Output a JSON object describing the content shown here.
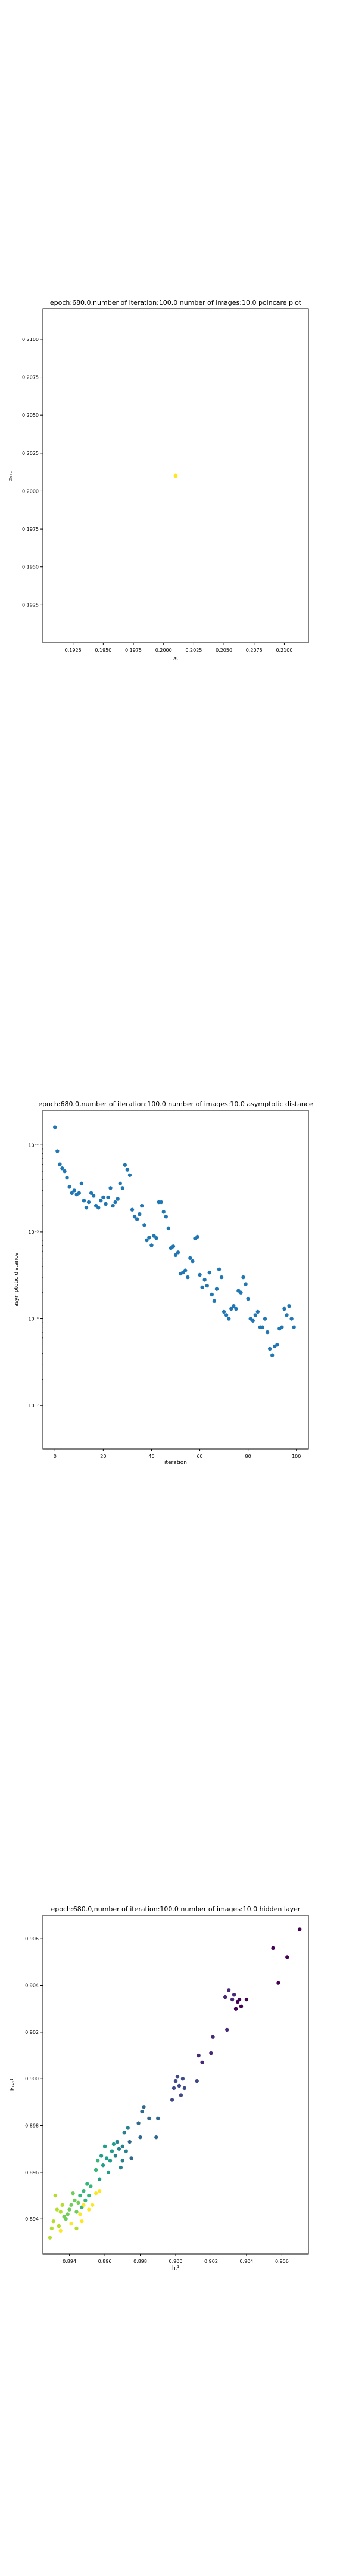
{
  "chart_data": [
    {
      "type": "scatter",
      "title": "epoch:680.0,number of iteration:100.0 number of images:10.0 poincare plot",
      "xlabel": "xₜ",
      "ylabel": "xₜ₊₁",
      "xlim": [
        0.19,
        0.212
      ],
      "ylim": [
        0.19,
        0.212
      ],
      "x_ticks": [
        0.1925,
        0.195,
        0.1975,
        0.2,
        0.2025,
        0.205,
        0.2075,
        0.21
      ],
      "y_ticks": [
        0.1925,
        0.195,
        0.1975,
        0.2,
        0.2025,
        0.205,
        0.2075,
        0.21
      ],
      "x_tick_labels": [
        "0.1925",
        "0.1950",
        "0.1975",
        "0.2000",
        "0.2025",
        "0.2050",
        "0.2075",
        "0.2100"
      ],
      "y_tick_labels": [
        "0.1925",
        "0.1950",
        "0.1975",
        "0.2000",
        "0.2025",
        "0.2050",
        "0.2075",
        "0.2100"
      ],
      "points": [
        [
          0.201,
          0.201
        ]
      ],
      "color": "#fde725"
    },
    {
      "type": "scatter",
      "title": "epoch:680.0,number of iteration:100.0  number of images:10.0 asymptotic distance",
      "xlabel": "iteration",
      "ylabel": "asymptotic distance",
      "xlim": [
        -5,
        105
      ],
      "ylim_log10": [
        -7.5,
        -3.6
      ],
      "y_scale": "log",
      "x_ticks": [
        0,
        20,
        40,
        60,
        80,
        100
      ],
      "x_tick_labels": [
        "0",
        "20",
        "40",
        "60",
        "80",
        "100"
      ],
      "y_ticks_log10": [
        -4,
        -5,
        -6,
        -7
      ],
      "y_tick_labels": [
        "10⁻⁴",
        "10⁻⁵",
        "10⁻⁶",
        "10⁻⁷"
      ],
      "color": "#1f77b4",
      "x": [
        0,
        1,
        2,
        3,
        4,
        5,
        6,
        7,
        8,
        9,
        10,
        11,
        12,
        13,
        14,
        15,
        16,
        17,
        18,
        19,
        20,
        21,
        22,
        23,
        24,
        25,
        26,
        27,
        28,
        29,
        30,
        31,
        32,
        33,
        34,
        35,
        36,
        37,
        38,
        39,
        40,
        41,
        42,
        43,
        44,
        45,
        46,
        47,
        48,
        49,
        50,
        51,
        52,
        53,
        54,
        55,
        56,
        57,
        58,
        59,
        60,
        61,
        62,
        63,
        64,
        65,
        66,
        67,
        68,
        69,
        70,
        71,
        72,
        73,
        74,
        75,
        76,
        77,
        78,
        79,
        80,
        81,
        82,
        83,
        84,
        85,
        86,
        87,
        88,
        89,
        90,
        91,
        92,
        93,
        94,
        95,
        96,
        97,
        98,
        99
      ],
      "y": [
        0.00016,
        8.5e-05,
        6e-05,
        5.4e-05,
        5e-05,
        4.2e-05,
        3.3e-05,
        2.8e-05,
        3e-05,
        2.7e-05,
        2.8e-05,
        3.6e-05,
        2.3e-05,
        1.9e-05,
        2.2e-05,
        2.8e-05,
        2.6e-05,
        2e-05,
        1.9e-05,
        2.3e-05,
        2.5e-05,
        2.1e-05,
        2.5e-05,
        3.2e-05,
        2e-05,
        2.2e-05,
        2.4e-05,
        3.6e-05,
        3.2e-05,
        5.9e-05,
        5.2e-05,
        4.5e-05,
        1.8e-05,
        1.5e-05,
        1.4e-05,
        1.6e-05,
        2e-05,
        1.2e-05,
        8e-06,
        8.6e-06,
        7e-06,
        9e-06,
        8.5e-06,
        2.2e-05,
        2.2e-05,
        1.7e-05,
        1.5e-05,
        1.1e-05,
        6.5e-06,
        6.8e-06,
        5.4e-06,
        5.8e-06,
        3.3e-06,
        3.4e-06,
        3.6e-06,
        3e-06,
        5e-06,
        4.6e-06,
        8.4e-06,
        8.8e-06,
        3.2e-06,
        2.3e-06,
        2.8e-06,
        2.4e-06,
        3.4e-06,
        1.9e-06,
        1.6e-06,
        2.2e-06,
        3.7e-06,
        3e-06,
        1.2e-06,
        1.1e-06,
        1e-06,
        1.3e-06,
        1.4e-06,
        1.3e-06,
        2.1e-06,
        2e-06,
        3e-06,
        2.5e-06,
        1.7e-06,
        1e-06,
        9.5e-07,
        1.1e-06,
        1.2e-06,
        8e-07,
        8e-07,
        1e-06,
        7e-07,
        4.5e-07,
        3.8e-07,
        4.8e-07,
        5e-07,
        7.7e-07,
        8e-07,
        1.3e-06,
        1.1e-06,
        1.4e-06,
        1e-06,
        8e-07
      ]
    },
    {
      "type": "scatter",
      "title": "epoch:680.0,number of iteration:100.0  number of images:10.0 hidden layer",
      "xlabel": "hₜ¹",
      "ylabel": "hₜ₊₁¹",
      "xlim": [
        0.8925,
        0.9075
      ],
      "ylim": [
        0.8925,
        0.907
      ],
      "x_ticks": [
        0.894,
        0.896,
        0.898,
        0.9,
        0.902,
        0.904,
        0.906
      ],
      "y_ticks": [
        0.894,
        0.896,
        0.898,
        0.9,
        0.902,
        0.904,
        0.906
      ],
      "x_tick_labels": [
        "0.894",
        "0.896",
        "0.898",
        "0.900",
        "0.902",
        "0.904",
        "0.906"
      ],
      "y_tick_labels": [
        "0.894",
        "0.896",
        "0.898",
        "0.900",
        "0.902",
        "0.904",
        "0.906"
      ],
      "colormap": "viridis",
      "points": [
        [
          0.907,
          0.9064
        ],
        [
          0.9063,
          0.9052
        ],
        [
          0.9055,
          0.9056
        ],
        [
          0.9058,
          0.9041
        ],
        [
          0.904,
          0.9034
        ],
        [
          0.9037,
          0.9031
        ],
        [
          0.9036,
          0.9034
        ],
        [
          0.9035,
          0.9033
        ],
        [
          0.9034,
          0.903
        ],
        [
          0.9033,
          0.9036
        ],
        [
          0.9032,
          0.9034
        ],
        [
          0.903,
          0.9038
        ],
        [
          0.9029,
          0.9021
        ],
        [
          0.9028,
          0.9035
        ],
        [
          0.9021,
          0.9018
        ],
        [
          0.902,
          0.9011
        ],
        [
          0.9015,
          0.9007
        ],
        [
          0.9013,
          0.901
        ],
        [
          0.9012,
          0.8999
        ],
        [
          0.9005,
          0.8996
        ],
        [
          0.9004,
          0.9
        ],
        [
          0.9003,
          0.8993
        ],
        [
          0.9002,
          0.8997
        ],
        [
          0.9001,
          0.9001
        ],
        [
          0.9,
          0.8999
        ],
        [
          0.8999,
          0.8996
        ],
        [
          0.8998,
          0.8991
        ],
        [
          0.899,
          0.8983
        ],
        [
          0.8989,
          0.8975
        ],
        [
          0.8985,
          0.8983
        ],
        [
          0.8982,
          0.8988
        ],
        [
          0.8981,
          0.8986
        ],
        [
          0.898,
          0.8975
        ],
        [
          0.8979,
          0.8981
        ],
        [
          0.8975,
          0.8966
        ],
        [
          0.8974,
          0.8973
        ],
        [
          0.8973,
          0.8979
        ],
        [
          0.8972,
          0.8969
        ],
        [
          0.8971,
          0.8977
        ],
        [
          0.897,
          0.8971
        ],
        [
          0.897,
          0.8965
        ],
        [
          0.8969,
          0.8962
        ],
        [
          0.8968,
          0.897
        ],
        [
          0.8967,
          0.8973
        ],
        [
          0.8966,
          0.8967
        ],
        [
          0.8965,
          0.8972
        ],
        [
          0.8964,
          0.8969
        ],
        [
          0.8963,
          0.8965
        ],
        [
          0.8962,
          0.896
        ],
        [
          0.8961,
          0.8966
        ],
        [
          0.896,
          0.8971
        ],
        [
          0.8959,
          0.8963
        ],
        [
          0.8958,
          0.8967
        ],
        [
          0.8957,
          0.8957
        ],
        [
          0.8956,
          0.8965
        ],
        [
          0.8955,
          0.8961
        ],
        [
          0.8952,
          0.8954
        ],
        [
          0.8951,
          0.895
        ],
        [
          0.895,
          0.8955
        ],
        [
          0.8949,
          0.8948
        ],
        [
          0.8948,
          0.8952
        ],
        [
          0.8947,
          0.8945
        ],
        [
          0.8946,
          0.895
        ],
        [
          0.8945,
          0.8947
        ],
        [
          0.8944,
          0.8943
        ],
        [
          0.8943,
          0.8948
        ],
        [
          0.8942,
          0.8951
        ],
        [
          0.8941,
          0.8946
        ],
        [
          0.894,
          0.8944
        ],
        [
          0.8939,
          0.8942
        ],
        [
          0.8938,
          0.894
        ],
        [
          0.8937,
          0.8941
        ],
        [
          0.8936,
          0.8946
        ],
        [
          0.8935,
          0.8943
        ],
        [
          0.8934,
          0.8937
        ],
        [
          0.8933,
          0.8944
        ],
        [
          0.8932,
          0.895
        ],
        [
          0.8931,
          0.8939
        ],
        [
          0.893,
          0.8936
        ],
        [
          0.8929,
          0.8932
        ],
        [
          0.8944,
          0.8936
        ],
        [
          0.8946,
          0.8942
        ],
        [
          0.8948,
          0.8946
        ],
        [
          0.8953,
          0.8946
        ],
        [
          0.8955,
          0.8951
        ],
        [
          0.8957,
          0.8952
        ],
        [
          0.8951,
          0.8944
        ],
        [
          0.8947,
          0.8939
        ],
        [
          0.8941,
          0.8938
        ],
        [
          0.8935,
          0.8935
        ]
      ]
    }
  ]
}
